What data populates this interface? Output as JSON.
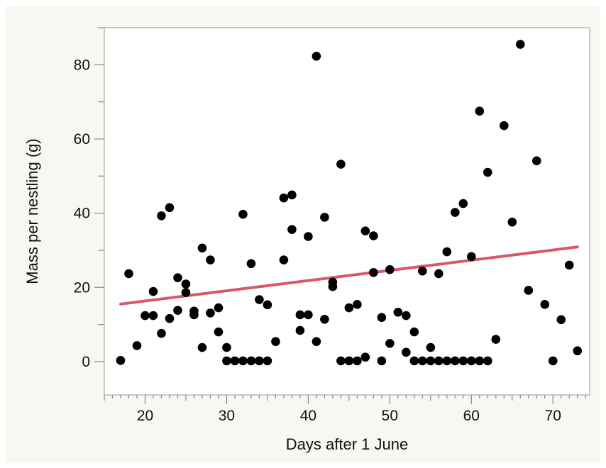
{
  "chart_data": {
    "type": "scatter",
    "xlabel": "Days after 1 June",
    "ylabel": "Mass per nestling (g)",
    "xlim": [
      15,
      74.5
    ],
    "ylim": [
      -9,
      90
    ],
    "xticks": [
      20,
      30,
      40,
      50,
      60,
      70
    ],
    "yticks": [
      0,
      20,
      40,
      60,
      80
    ],
    "grid": false,
    "point_color": "#000000",
    "trend_color": "#d9566b",
    "series": [
      {
        "values": [
          [
            17,
            0.3
          ],
          [
            18,
            23.7
          ],
          [
            19,
            4.3
          ],
          [
            20,
            12.4
          ],
          [
            21,
            12.4
          ],
          [
            21,
            18.9
          ],
          [
            22,
            39.3
          ],
          [
            22,
            7.6
          ],
          [
            23,
            41.5
          ],
          [
            23,
            11.6
          ],
          [
            24,
            22.6
          ],
          [
            24,
            13.8
          ],
          [
            25,
            20.9
          ],
          [
            25,
            18.6
          ],
          [
            26,
            13.6
          ],
          [
            26,
            12.6
          ],
          [
            27,
            30.6
          ],
          [
            27,
            3.8
          ],
          [
            28,
            27.4
          ],
          [
            28,
            13.1
          ],
          [
            29,
            14.5
          ],
          [
            29,
            8.0
          ],
          [
            30,
            3.8
          ],
          [
            30,
            0.2
          ],
          [
            31,
            0.2
          ],
          [
            32,
            39.7
          ],
          [
            32,
            0.2
          ],
          [
            33,
            26.4
          ],
          [
            33,
            0.2
          ],
          [
            34,
            16.7
          ],
          [
            34,
            0.2
          ],
          [
            35,
            15.3
          ],
          [
            35,
            0.2
          ],
          [
            36,
            5.4
          ],
          [
            37,
            44.1
          ],
          [
            37,
            27.4
          ],
          [
            38,
            44.9
          ],
          [
            38,
            35.6
          ],
          [
            39,
            12.6
          ],
          [
            39,
            8.4
          ],
          [
            40,
            33.7
          ],
          [
            40,
            12.6
          ],
          [
            41,
            82.3
          ],
          [
            41,
            5.4
          ],
          [
            42,
            38.9
          ],
          [
            42,
            11.4
          ],
          [
            43,
            21.4
          ],
          [
            43,
            20.2
          ],
          [
            44,
            53.2
          ],
          [
            44,
            0.2
          ],
          [
            45,
            14.5
          ],
          [
            45,
            0.2
          ],
          [
            46,
            15.4
          ],
          [
            46,
            0.2
          ],
          [
            47,
            35.2
          ],
          [
            47,
            1.2
          ],
          [
            48,
            33.9
          ],
          [
            48,
            24.0
          ],
          [
            49,
            11.9
          ],
          [
            49,
            0.2
          ],
          [
            50,
            24.8
          ],
          [
            50,
            4.9
          ],
          [
            51,
            13.3
          ],
          [
            52,
            12.4
          ],
          [
            52,
            2.5
          ],
          [
            53,
            8.0
          ],
          [
            53,
            0.2
          ],
          [
            54,
            24.4
          ],
          [
            54,
            0.2
          ],
          [
            55,
            3.8
          ],
          [
            55,
            0.2
          ],
          [
            56,
            23.7
          ],
          [
            56,
            0.2
          ],
          [
            57,
            29.6
          ],
          [
            57,
            0.2
          ],
          [
            58,
            40.2
          ],
          [
            58,
            0.2
          ],
          [
            59,
            42.6
          ],
          [
            59,
            0.2
          ],
          [
            60,
            28.3
          ],
          [
            60,
            0.2
          ],
          [
            61,
            67.5
          ],
          [
            61,
            0.2
          ],
          [
            62,
            51.0
          ],
          [
            62,
            0.2
          ],
          [
            63,
            6.0
          ],
          [
            64,
            63.6
          ],
          [
            65,
            37.6
          ],
          [
            66,
            85.5
          ],
          [
            67,
            19.2
          ],
          [
            68,
            54.1
          ],
          [
            69,
            15.4
          ],
          [
            70,
            0.2
          ],
          [
            71,
            11.3
          ],
          [
            72,
            26.0
          ],
          [
            73,
            2.9
          ]
        ]
      }
    ],
    "trend_line": {
      "x": [
        17,
        73
      ],
      "y": [
        15.5,
        30.9
      ]
    }
  }
}
